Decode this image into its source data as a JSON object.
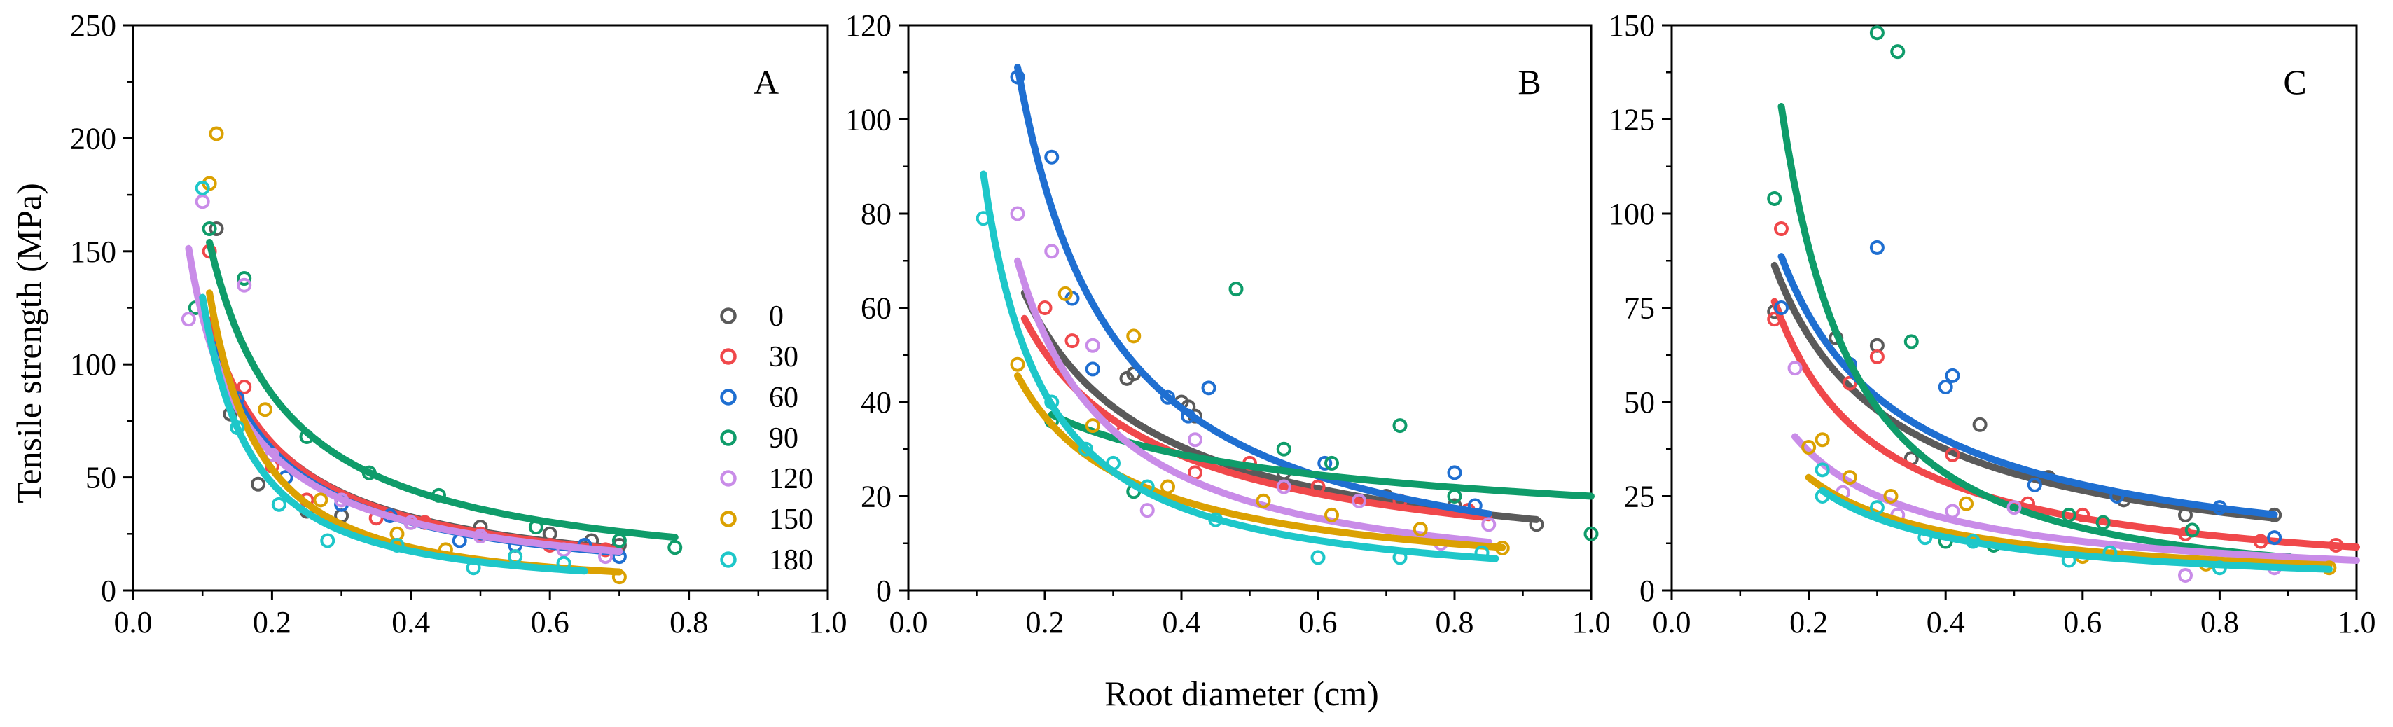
{
  "figure": {
    "ylabel": "Tensile strength (MPa)",
    "xlabel": "Root diameter (cm)"
  },
  "chart_data": [
    {
      "type": "scatter",
      "label": "A",
      "xlim": [
        0.0,
        1.0
      ],
      "ylim": [
        0,
        250
      ],
      "xticks": [
        "0.0",
        "0.2",
        "0.4",
        "0.6",
        "0.8",
        "1.0"
      ],
      "yticks": [
        "0",
        "50",
        "100",
        "150",
        "200",
        "250"
      ],
      "legend": {
        "position": "right",
        "entries": [
          "0",
          "30",
          "60",
          "90",
          "120",
          "150",
          "180"
        ]
      },
      "series": [
        {
          "name": "0",
          "color": "#5a5a5a",
          "fit": {
            "a": 13.0,
            "b": -1.0,
            "xmin": 0.12,
            "xmax": 0.7
          },
          "points": [
            [
              0.14,
              78
            ],
            [
              0.12,
              160
            ],
            [
              0.18,
              47
            ],
            [
              0.22,
              50
            ],
            [
              0.25,
              35
            ],
            [
              0.3,
              33
            ],
            [
              0.4,
              30
            ],
            [
              0.5,
              28
            ],
            [
              0.6,
              25
            ],
            [
              0.66,
              22
            ],
            [
              0.7,
              20
            ]
          ]
        },
        {
          "name": "30",
          "color": "#f0484b",
          "fit": {
            "a": 12.6,
            "b": -1.02,
            "xmin": 0.11,
            "xmax": 0.7
          },
          "points": [
            [
              0.11,
              150
            ],
            [
              0.16,
              90
            ],
            [
              0.2,
              55
            ],
            [
              0.25,
              40
            ],
            [
              0.35,
              32
            ],
            [
              0.42,
              30
            ],
            [
              0.5,
              25
            ],
            [
              0.6,
              20
            ],
            [
              0.68,
              18
            ]
          ]
        },
        {
          "name": "60",
          "color": "#1f6fd1",
          "fit": {
            "a": 11.5,
            "b": -1.05,
            "xmin": 0.12,
            "xmax": 0.7
          },
          "points": [
            [
              0.12,
              107
            ],
            [
              0.15,
              85
            ],
            [
              0.22,
              50
            ],
            [
              0.3,
              38
            ],
            [
              0.37,
              33
            ],
            [
              0.47,
              22
            ],
            [
              0.55,
              20
            ],
            [
              0.65,
              20
            ],
            [
              0.7,
              15
            ]
          ]
        },
        {
          "name": "90",
          "color": "#0f9c6a",
          "fit": {
            "a": 18.5,
            "b": -0.96,
            "xmin": 0.11,
            "xmax": 0.78
          },
          "points": [
            [
              0.09,
              125
            ],
            [
              0.11,
              160
            ],
            [
              0.16,
              138
            ],
            [
              0.25,
              68
            ],
            [
              0.34,
              52
            ],
            [
              0.44,
              42
            ],
            [
              0.58,
              28
            ],
            [
              0.7,
              22
            ],
            [
              0.78,
              19
            ]
          ]
        },
        {
          "name": "120",
          "color": "#c98ce8",
          "fit": {
            "a": 12.1,
            "b": -1.0,
            "xmin": 0.08,
            "xmax": 0.7
          },
          "points": [
            [
              0.08,
              120
            ],
            [
              0.1,
              172
            ],
            [
              0.16,
              135
            ],
            [
              0.2,
              60
            ],
            [
              0.3,
              40
            ],
            [
              0.4,
              30
            ],
            [
              0.5,
              24
            ],
            [
              0.62,
              18
            ],
            [
              0.68,
              15
            ]
          ]
        },
        {
          "name": "150",
          "color": "#dba102",
          "fit": {
            "a": 4.8,
            "b": -1.5,
            "xmin": 0.11,
            "xmax": 0.7
          },
          "points": [
            [
              0.12,
              202
            ],
            [
              0.11,
              180
            ],
            [
              0.19,
              80
            ],
            [
              0.27,
              40
            ],
            [
              0.38,
              25
            ],
            [
              0.45,
              18
            ],
            [
              0.55,
              15
            ],
            [
              0.7,
              6
            ]
          ]
        },
        {
          "name": "180",
          "color": "#1ec7c9",
          "fit": {
            "a": 4.6,
            "b": -1.45,
            "xmin": 0.1,
            "xmax": 0.65
          },
          "points": [
            [
              0.1,
              178
            ],
            [
              0.15,
              72
            ],
            [
              0.21,
              38
            ],
            [
              0.28,
              22
            ],
            [
              0.38,
              20
            ],
            [
              0.49,
              10
            ],
            [
              0.55,
              15
            ],
            [
              0.62,
              12
            ]
          ]
        }
      ]
    },
    {
      "type": "scatter",
      "label": "B",
      "xlim": [
        0.0,
        1.0
      ],
      "ylim": [
        0,
        120
      ],
      "xticks": [
        "0.0",
        "0.2",
        "0.4",
        "0.6",
        "0.8",
        "1.0"
      ],
      "yticks": [
        "0",
        "20",
        "40",
        "60",
        "80",
        "100",
        "120"
      ],
      "series": [
        {
          "name": "0",
          "color": "#5a5a5a",
          "fit": {
            "a": 14.0,
            "b": -0.85,
            "xmin": 0.17,
            "xmax": 0.92
          },
          "points": [
            [
              0.32,
              45
            ],
            [
              0.33,
              46
            ],
            [
              0.4,
              40
            ],
            [
              0.41,
              39
            ],
            [
              0.42,
              37
            ],
            [
              0.55,
              25
            ],
            [
              0.7,
              20
            ],
            [
              0.8,
              18
            ],
            [
              0.92,
              14
            ]
          ]
        },
        {
          "name": "30",
          "color": "#f0484b",
          "fit": {
            "a": 13.5,
            "b": -0.82,
            "xmin": 0.17,
            "xmax": 0.85
          },
          "points": [
            [
              0.2,
              60
            ],
            [
              0.24,
              53
            ],
            [
              0.3,
              35
            ],
            [
              0.42,
              25
            ],
            [
              0.5,
              27
            ],
            [
              0.6,
              22
            ],
            [
              0.72,
              19
            ],
            [
              0.82,
              17
            ]
          ]
        },
        {
          "name": "60",
          "color": "#1f6fd1",
          "fit": {
            "a": 13.5,
            "b": -1.15,
            "xmin": 0.16,
            "xmax": 0.85
          },
          "points": [
            [
              0.16,
              109
            ],
            [
              0.21,
              92
            ],
            [
              0.24,
              62
            ],
            [
              0.27,
              47
            ],
            [
              0.38,
              41
            ],
            [
              0.41,
              37
            ],
            [
              0.44,
              43
            ],
            [
              0.61,
              27
            ],
            [
              0.8,
              25
            ],
            [
              0.83,
              18
            ]
          ]
        },
        {
          "name": "90",
          "color": "#0f9c6a",
          "fit": {
            "a": 20.0,
            "b": -0.4,
            "xmin": 0.21,
            "xmax": 1.0
          },
          "points": [
            [
              0.21,
              36
            ],
            [
              0.33,
              21
            ],
            [
              0.48,
              64
            ],
            [
              0.55,
              30
            ],
            [
              0.62,
              27
            ],
            [
              0.72,
              35
            ],
            [
              0.8,
              20
            ],
            [
              1.0,
              12
            ]
          ]
        },
        {
          "name": "120",
          "color": "#c98ce8",
          "fit": {
            "a": 8.5,
            "b": -1.15,
            "xmin": 0.16,
            "xmax": 0.85
          },
          "points": [
            [
              0.16,
              80
            ],
            [
              0.21,
              72
            ],
            [
              0.27,
              52
            ],
            [
              0.35,
              17
            ],
            [
              0.42,
              32
            ],
            [
              0.55,
              22
            ],
            [
              0.66,
              19
            ],
            [
              0.78,
              10
            ],
            [
              0.85,
              14
            ]
          ]
        },
        {
          "name": "150",
          "color": "#dba102",
          "fit": {
            "a": 8.0,
            "b": -0.95,
            "xmin": 0.16,
            "xmax": 0.87
          },
          "points": [
            [
              0.16,
              48
            ],
            [
              0.23,
              63
            ],
            [
              0.27,
              35
            ],
            [
              0.33,
              54
            ],
            [
              0.38,
              22
            ],
            [
              0.52,
              19
            ],
            [
              0.62,
              16
            ],
            [
              0.75,
              13
            ],
            [
              0.87,
              9
            ]
          ]
        },
        {
          "name": "180",
          "color": "#1ec7c9",
          "fit": {
            "a": 5.6,
            "b": -1.25,
            "xmin": 0.11,
            "xmax": 0.86
          },
          "points": [
            [
              0.11,
              79
            ],
            [
              0.21,
              40
            ],
            [
              0.26,
              30
            ],
            [
              0.3,
              27
            ],
            [
              0.35,
              22
            ],
            [
              0.45,
              15
            ],
            [
              0.6,
              7
            ],
            [
              0.72,
              7
            ],
            [
              0.84,
              8
            ]
          ]
        }
      ]
    },
    {
      "type": "scatter",
      "label": "C",
      "xlim": [
        0.0,
        1.0
      ],
      "ylim": [
        0,
        150
      ],
      "xticks": [
        "0.0",
        "0.2",
        "0.4",
        "0.6",
        "0.8",
        "1.0"
      ],
      "yticks": [
        "0",
        "25",
        "50",
        "75",
        "100",
        "125",
        "150"
      ],
      "series": [
        {
          "name": "0",
          "color": "#5a5a5a",
          "fit": {
            "a": 17.2,
            "b": -0.85,
            "xmin": 0.15,
            "xmax": 0.88
          },
          "points": [
            [
              0.15,
              74
            ],
            [
              0.24,
              67
            ],
            [
              0.3,
              65
            ],
            [
              0.35,
              35
            ],
            [
              0.45,
              44
            ],
            [
              0.55,
              30
            ],
            [
              0.66,
              24
            ],
            [
              0.75,
              20
            ],
            [
              0.88,
              20
            ]
          ]
        },
        {
          "name": "30",
          "color": "#f0484b",
          "fit": {
            "a": 11.5,
            "b": -1.0,
            "xmin": 0.15,
            "xmax": 1.0
          },
          "points": [
            [
              0.15,
              72
            ],
            [
              0.16,
              96
            ],
            [
              0.26,
              55
            ],
            [
              0.3,
              62
            ],
            [
              0.41,
              36
            ],
            [
              0.52,
              23
            ],
            [
              0.6,
              20
            ],
            [
              0.75,
              15
            ],
            [
              0.86,
              13
            ],
            [
              0.97,
              12
            ]
          ]
        },
        {
          "name": "60",
          "color": "#1f6fd1",
          "fit": {
            "a": 18.0,
            "b": -0.87,
            "xmin": 0.16,
            "xmax": 0.88
          },
          "points": [
            [
              0.16,
              75
            ],
            [
              0.26,
              60
            ],
            [
              0.3,
              91
            ],
            [
              0.4,
              54
            ],
            [
              0.41,
              57
            ],
            [
              0.53,
              28
            ],
            [
              0.65,
              25
            ],
            [
              0.8,
              22
            ],
            [
              0.88,
              14
            ]
          ]
        },
        {
          "name": "90",
          "color": "#0f9c6a",
          "fit": {
            "a": 7.5,
            "b": -1.55,
            "xmin": 0.16,
            "xmax": 0.96
          },
          "points": [
            [
              0.15,
              104
            ],
            [
              0.3,
              148
            ],
            [
              0.33,
              143
            ],
            [
              0.35,
              66
            ],
            [
              0.4,
              13
            ],
            [
              0.47,
              12
            ],
            [
              0.58,
              20
            ],
            [
              0.63,
              18
            ],
            [
              0.76,
              16
            ],
            [
              0.9,
              8
            ]
          ]
        },
        {
          "name": "120",
          "color": "#c98ce8",
          "fit": {
            "a": 8.0,
            "b": -0.95,
            "xmin": 0.18,
            "xmax": 1.0
          },
          "points": [
            [
              0.18,
              59
            ],
            [
              0.25,
              26
            ],
            [
              0.33,
              20
            ],
            [
              0.41,
              21
            ],
            [
              0.5,
              22
            ],
            [
              0.65,
              10
            ],
            [
              0.75,
              4
            ],
            [
              0.88,
              6
            ]
          ]
        },
        {
          "name": "150",
          "color": "#dba102",
          "fit": {
            "a": 6.5,
            "b": -0.95,
            "xmin": 0.2,
            "xmax": 0.96
          },
          "points": [
            [
              0.2,
              38
            ],
            [
              0.22,
              40
            ],
            [
              0.26,
              30
            ],
            [
              0.32,
              25
            ],
            [
              0.43,
              23
            ],
            [
              0.6,
              9
            ],
            [
              0.78,
              7
            ],
            [
              0.96,
              6
            ]
          ]
        },
        {
          "name": "180",
          "color": "#1ec7c9",
          "fit": {
            "a": 5.4,
            "b": -1.05,
            "xmin": 0.22,
            "xmax": 0.96
          },
          "points": [
            [
              0.22,
              25
            ],
            [
              0.22,
              32
            ],
            [
              0.3,
              22
            ],
            [
              0.37,
              14
            ],
            [
              0.44,
              13
            ],
            [
              0.58,
              8
            ],
            [
              0.64,
              10
            ],
            [
              0.8,
              6
            ]
          ]
        }
      ]
    }
  ]
}
